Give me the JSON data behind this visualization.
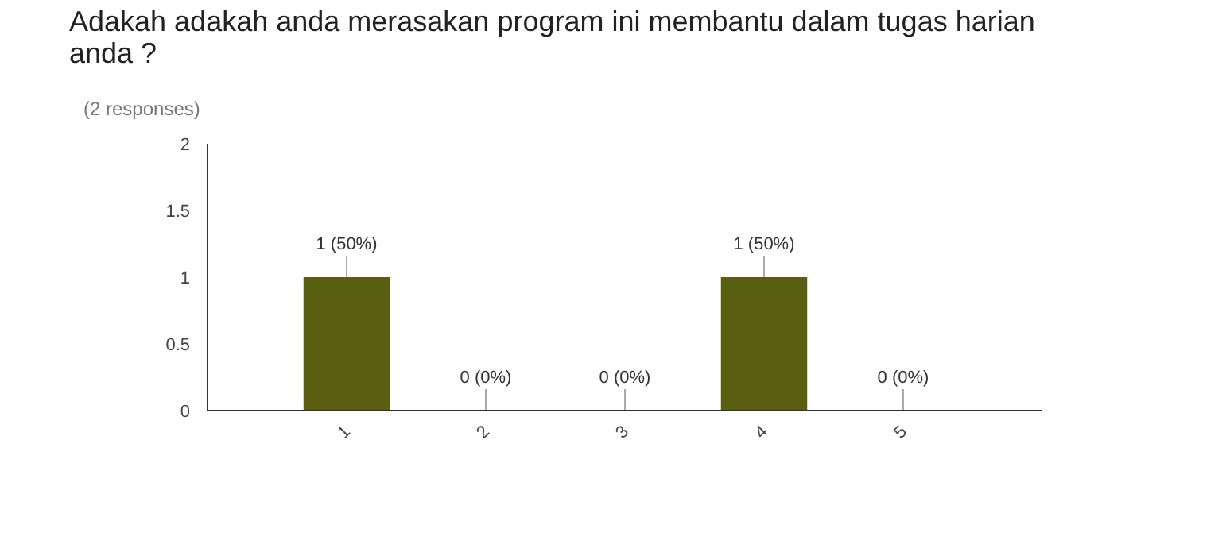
{
  "chart_data": {
    "type": "bar",
    "title": "Adakah adakah anda merasakan program ini membantu dalam tugas harian anda ?",
    "subtitle": "(2 responses)",
    "x": [
      1,
      2,
      3,
      4,
      5
    ],
    "values": [
      1,
      0,
      0,
      1,
      0
    ],
    "color": "#5a5e10",
    "value_labels": [
      "1 (50%)",
      "0 (0%)",
      "0 (0%)",
      "1 (50%)",
      "0 (0%)"
    ],
    "xlim": [
      0,
      6
    ],
    "xticks": [
      1,
      2,
      3,
      4,
      5
    ],
    "ylim": [
      0,
      2
    ],
    "yticks": [
      0,
      0.5,
      1,
      1.5,
      2
    ],
    "grid": false
  }
}
